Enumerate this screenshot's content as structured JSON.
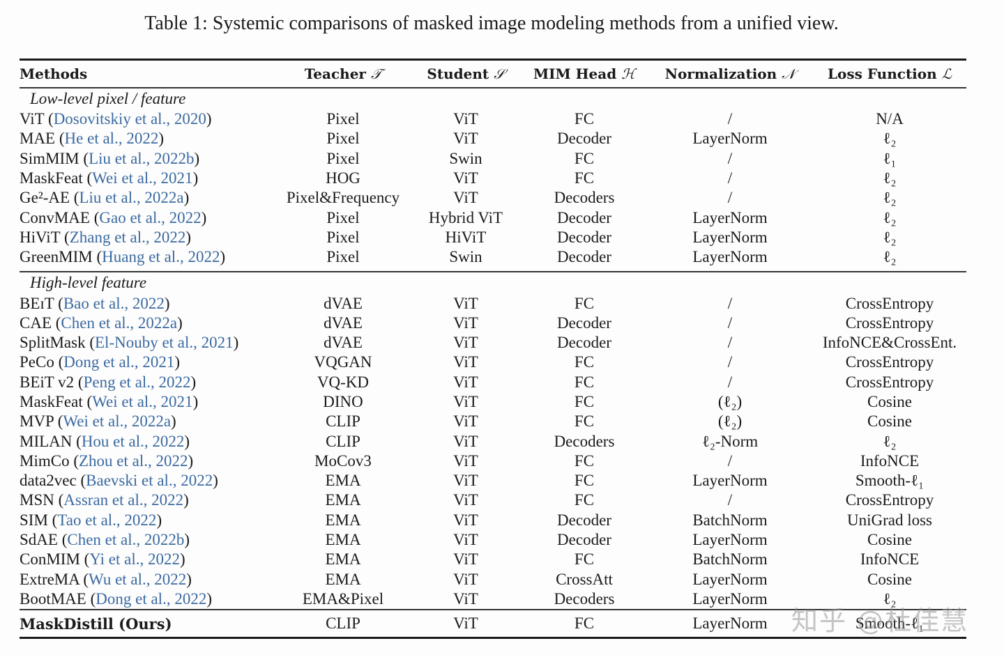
{
  "caption": "Table 1: Systemic comparisons of masked image modeling methods from a unified view.",
  "colors": {
    "citation": "#3b6aa0",
    "text": "#1a1a1a"
  },
  "headers": [
    {
      "label": "Methods",
      "symbol": ""
    },
    {
      "label": "Teacher",
      "symbol": "𝒯"
    },
    {
      "label": "Student",
      "symbol": "𝒮"
    },
    {
      "label": "MIM Head",
      "symbol": "ℋ"
    },
    {
      "label": "Normalization",
      "symbol": "𝒩"
    },
    {
      "label": "Loss Function",
      "symbol": "ℒ"
    }
  ],
  "groups": [
    {
      "title": "Low-level pixel / feature",
      "rows": [
        {
          "method": "ViT",
          "cite": "Dosovitskiy et al., 2020",
          "teacher": "Pixel",
          "student": "ViT",
          "head": "FC",
          "norm": "/",
          "loss": "N/A"
        },
        {
          "method": "MAE",
          "cite": "He et al., 2022",
          "teacher": "Pixel",
          "student": "ViT",
          "head": "Decoder",
          "norm": "LayerNorm",
          "loss": "ℓ₂"
        },
        {
          "method": "SimMIM",
          "cite": "Liu et al., 2022b",
          "teacher": "Pixel",
          "student": "Swin",
          "head": "FC",
          "norm": "/",
          "loss": "ℓ₁"
        },
        {
          "method": "MaskFeat",
          "cite": "Wei et al., 2021",
          "teacher": "HOG",
          "student": "ViT",
          "head": "FC",
          "norm": "/",
          "loss": "ℓ₂"
        },
        {
          "method": "Ge²-AE",
          "cite": "Liu et al., 2022a",
          "teacher": "Pixel&Frequency",
          "student": "ViT",
          "head": "Decoders",
          "norm": "/",
          "loss": "ℓ₂"
        },
        {
          "method": "ConvMAE",
          "cite": "Gao et al., 2022",
          "teacher": "Pixel",
          "student": "Hybrid ViT",
          "head": "Decoder",
          "norm": "LayerNorm",
          "loss": "ℓ₂"
        },
        {
          "method": "HiViT",
          "cite": "Zhang et al., 2022",
          "teacher": "Pixel",
          "student": "HiViT",
          "head": "Decoder",
          "norm": "LayerNorm",
          "loss": "ℓ₂"
        },
        {
          "method": "GreenMIM",
          "cite": "Huang et al., 2022",
          "teacher": "Pixel",
          "student": "Swin",
          "head": "Decoder",
          "norm": "LayerNorm",
          "loss": "ℓ₂"
        }
      ]
    },
    {
      "title": "High-level feature",
      "rows": [
        {
          "method": "BEɪT",
          "cite": "Bao et al., 2022",
          "teacher": "dVAE",
          "student": "ViT",
          "head": "FC",
          "norm": "/",
          "loss": "CrossEntropy"
        },
        {
          "method": "CAE",
          "cite": "Chen et al., 2022a",
          "teacher": "dVAE",
          "student": "ViT",
          "head": "Decoder",
          "norm": "/",
          "loss": "CrossEntropy"
        },
        {
          "method": "SplitMask",
          "cite": "El-Nouby et al., 2021",
          "teacher": "dVAE",
          "student": "ViT",
          "head": "Decoder",
          "norm": "/",
          "loss": "InfoNCE&CrossEnt."
        },
        {
          "method": "PeCo",
          "cite": "Dong et al., 2021",
          "teacher": "VQGAN",
          "student": "ViT",
          "head": "FC",
          "norm": "/",
          "loss": "CrossEntropy"
        },
        {
          "method": "BEiT v2",
          "cite": "Peng et al., 2022",
          "teacher": "VQ-KD",
          "student": "ViT",
          "head": "FC",
          "norm": "/",
          "loss": "CrossEntropy"
        },
        {
          "method": "MaskFeat",
          "cite": "Wei et al., 2021",
          "teacher": "DINO",
          "student": "ViT",
          "head": "FC",
          "norm": "(ℓ₂)",
          "loss": "Cosine"
        },
        {
          "method": "MVP",
          "cite": "Wei et al., 2022a",
          "teacher": "CLIP",
          "student": "ViT",
          "head": "FC",
          "norm": "(ℓ₂)",
          "loss": "Cosine"
        },
        {
          "method": "MILAN",
          "cite": "Hou et al., 2022",
          "teacher": "CLIP",
          "student": "ViT",
          "head": "Decoders",
          "norm": "ℓ₂-Norm",
          "loss": "ℓ₂"
        },
        {
          "method": "MimCo",
          "cite": "Zhou et al., 2022",
          "teacher": "MoCov3",
          "student": "ViT",
          "head": "FC",
          "norm": "/",
          "loss": "InfoNCE"
        },
        {
          "method": "data2vec",
          "cite": "Baevski et al., 2022",
          "teacher": "EMA",
          "student": "ViT",
          "head": "FC",
          "norm": "LayerNorm",
          "loss": "Smooth-ℓ₁"
        },
        {
          "method": "MSN",
          "cite": "Assran et al., 2022",
          "teacher": "EMA",
          "student": "ViT",
          "head": "FC",
          "norm": "/",
          "loss": "CrossEntropy"
        },
        {
          "method": "SIM",
          "cite": "Tao et al., 2022",
          "teacher": "EMA",
          "student": "ViT",
          "head": "Decoder",
          "norm": "BatchNorm",
          "loss": "UniGrad loss"
        },
        {
          "method": "SdAE",
          "cite": "Chen et al., 2022b",
          "teacher": "EMA",
          "student": "ViT",
          "head": "Decoder",
          "norm": "LayerNorm",
          "loss": "Cosine"
        },
        {
          "method": "ConMIM",
          "cite": "Yi et al., 2022",
          "teacher": "EMA",
          "student": "ViT",
          "head": "FC",
          "norm": "BatchNorm",
          "loss": "InfoNCE"
        },
        {
          "method": "ExtreMA",
          "cite": "Wu et al., 2022",
          "teacher": "EMA",
          "student": "ViT",
          "head": "CrossAtt",
          "norm": "LayerNorm",
          "loss": "Cosine"
        },
        {
          "method": "BootMAE",
          "cite": "Dong et al., 2022",
          "teacher": "EMA&Pixel",
          "student": "ViT",
          "head": "Decoders",
          "norm": "LayerNorm",
          "loss": "ℓ₂"
        }
      ]
    }
  ],
  "ours": {
    "method": "MaskDistill (Ours)",
    "teacher": "CLIP",
    "student": "ViT",
    "head": "FC",
    "norm": "LayerNorm",
    "loss": "Smooth-ℓ₁"
  },
  "watermark": "知乎 @杜佳慧"
}
